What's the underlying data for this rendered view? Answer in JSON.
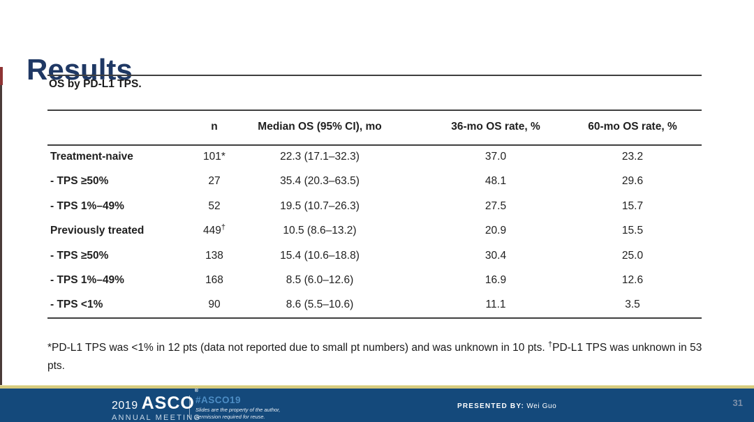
{
  "slide": {
    "title": "Results",
    "table_caption": "OS by PD-L1 TPS.",
    "accent_color": "#1f3864",
    "footer_bar_color": "#14497b",
    "footer_gold_color": "#d6ca7c"
  },
  "table": {
    "headers": [
      "",
      "n",
      "Median OS (95% CI), mo",
      "36-mo OS rate, %",
      "60-mo OS rate, %"
    ],
    "rows": [
      {
        "label": "Treatment-naive",
        "n": "101",
        "n_suffix": "*",
        "n_sup": "",
        "median": "22.3 (17.1–32.3)",
        "rate36": "37.0",
        "rate60": "23.2"
      },
      {
        "label": "- TPS ≥50%",
        "n": "27",
        "n_suffix": "",
        "n_sup": "",
        "median": "35.4 (20.3–63.5)",
        "rate36": "48.1",
        "rate60": "29.6"
      },
      {
        "label": "- TPS 1%–49%",
        "n": "52",
        "n_suffix": "",
        "n_sup": "",
        "median": "19.5 (10.7–26.3)",
        "rate36": "27.5",
        "rate60": "15.7"
      },
      {
        "label": "Previously treated",
        "n": "449",
        "n_suffix": "",
        "n_sup": "†",
        "median": "10.5 (8.6–13.2)",
        "rate36": "20.9",
        "rate60": "15.5"
      },
      {
        "label": "- TPS ≥50%",
        "n": "138",
        "n_suffix": "",
        "n_sup": "",
        "median": "15.4 (10.6–18.8)",
        "rate36": "30.4",
        "rate60": "25.0"
      },
      {
        "label": "- TPS 1%–49%",
        "n": "168",
        "n_suffix": "",
        "n_sup": "",
        "median": "8.5 (6.0–12.6)",
        "rate36": "16.9",
        "rate60": "12.6"
      },
      {
        "label": "- TPS <1%",
        "n": "90",
        "n_suffix": "",
        "n_sup": "",
        "median": "8.6 (5.5–10.6)",
        "rate36": "11.1",
        "rate60": "3.5"
      }
    ]
  },
  "footnote": {
    "part1": "*PD-L1 TPS was <1% in 12 pts (data not reported due to small pt numbers) and was unknown in 10 pts. ",
    "dagger": "†",
    "part2": "PD-L1 TPS was unknown in 53 pts."
  },
  "footer": {
    "logo_year": "2019",
    "logo_name": "ASCO",
    "logo_reg": "®",
    "logo_sub": "ANNUAL MEETING",
    "hashtag": "#ASCO19",
    "disclaimer_line1": "Slides are the property of the author,",
    "disclaimer_line2": "permission required for reuse.",
    "presented_label": "PRESENTED BY:",
    "presenter": "Wei Guo",
    "page_number": "31"
  }
}
